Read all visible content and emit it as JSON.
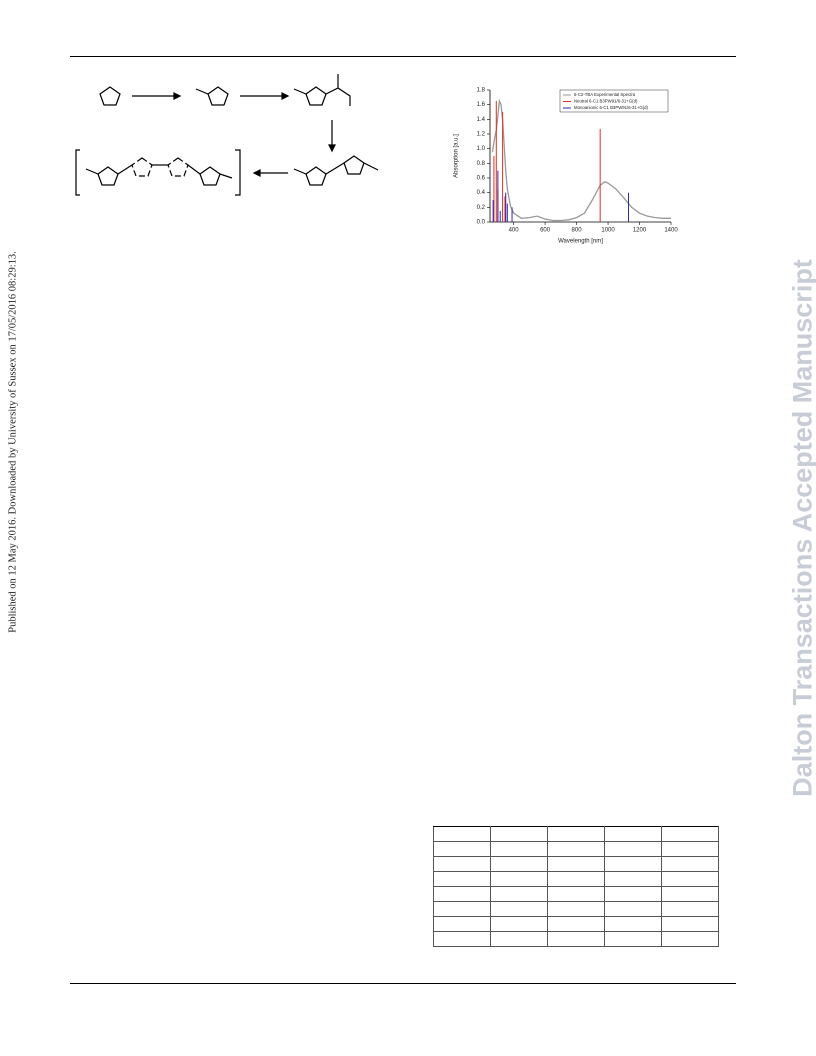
{
  "side_note": "Published on 12 May 2016. Downloaded by University of Sussex on 17/05/2016 08:29:13.",
  "watermark": "Dalton Transactions Accepted Manuscript",
  "chart_data": {
    "type": "line",
    "x_label": "Wavelength [nm]",
    "y_label": "Absorption [a.u.]",
    "xlim": [
      250,
      1400
    ],
    "xticks": [
      400,
      600,
      800,
      1000,
      1200,
      1400
    ],
    "ylim": [
      0,
      1.8
    ],
    "yticks": [
      {
        "value": 0,
        "label": "0.0"
      },
      0.2,
      0.4,
      0.6,
      0.8,
      {
        "value": 1,
        "label": "1.0"
      },
      1.2,
      1.4,
      1.6,
      1.8
    ],
    "legend": "upper right",
    "series": [
      {
        "name": "6-C2-TBA Experimental Spectra",
        "color": "#999999",
        "style": "line",
        "x": [
          265,
          280,
          290,
          300,
          310,
          320,
          330,
          340,
          350,
          360,
          380,
          400,
          450,
          500,
          550,
          600,
          650,
          700,
          750,
          800,
          850,
          900,
          950,
          980,
          1000,
          1050,
          1100,
          1150,
          1200,
          1250,
          1300,
          1350,
          1400
        ],
        "values": [
          0.95,
          1.15,
          1.25,
          1.45,
          1.65,
          1.6,
          1.4,
          1.05,
          0.7,
          0.45,
          0.22,
          0.12,
          0.05,
          0.06,
          0.08,
          0.04,
          0.02,
          0.02,
          0.03,
          0.06,
          0.12,
          0.3,
          0.5,
          0.55,
          0.53,
          0.45,
          0.33,
          0.2,
          0.12,
          0.08,
          0.06,
          0.05,
          0.05
        ]
      },
      {
        "name": "Neutral 6-C1 B3PW91/6-31+G(d)",
        "color": "#e0301e",
        "style": "stick",
        "x": [
          275,
          290,
          300,
          330,
          345,
          950
        ],
        "values": [
          0.9,
          1.65,
          0.45,
          1.5,
          0.35,
          1.27
        ]
      },
      {
        "name": "Monoanionic 6-C1 B3PW91/6-31+G(d)",
        "color": "#2a2ab8",
        "style": "stick",
        "x": [
          270,
          300,
          315,
          350,
          360,
          390,
          1130
        ],
        "values": [
          0.3,
          0.7,
          0.15,
          0.4,
          0.25,
          0.2,
          0.4
        ]
      }
    ]
  }
}
